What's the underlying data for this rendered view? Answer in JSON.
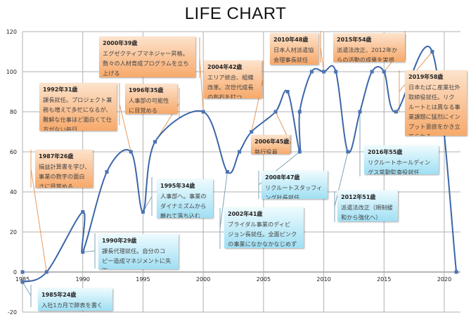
{
  "chart_data": {
    "type": "line",
    "title": "LIFE CHART",
    "xlabel": "",
    "ylabel": "",
    "xlim": [
      1985,
      2021
    ],
    "ylim": [
      -20,
      120
    ],
    "x_ticks": [
      1985,
      1990,
      1995,
      2000,
      2005,
      2010,
      2015,
      2020
    ],
    "y_ticks": [
      -20,
      0,
      20,
      40,
      60,
      80,
      100,
      120
    ],
    "grid": true,
    "smooth": true,
    "line_color": "#3b66a8",
    "extra_points": [
      {
        "x": 1985,
        "y": 0
      }
    ],
    "points": [
      {
        "x": 1985,
        "y": -5
      },
      {
        "x": 1987,
        "y": 0
      },
      {
        "x": 1990,
        "y": 30
      },
      {
        "x": 1990,
        "y": 10
      },
      {
        "x": 1992,
        "y": 50
      },
      {
        "x": 1994,
        "y": 60
      },
      {
        "x": 1995,
        "y": 30
      },
      {
        "x": 1996,
        "y": 65
      },
      {
        "x": 2000,
        "y": 80
      },
      {
        "x": 2002,
        "y": 50
      },
      {
        "x": 2003,
        "y": 60
      },
      {
        "x": 2004,
        "y": 70
      },
      {
        "x": 2006,
        "y": 80
      },
      {
        "x": 2007,
        "y": 90
      },
      {
        "x": 2008,
        "y": 60
      },
      {
        "x": 2008,
        "y": 80
      },
      {
        "x": 2009,
        "y": 100
      },
      {
        "x": 2010,
        "y": 100
      },
      {
        "x": 2011,
        "y": 100
      },
      {
        "x": 2012,
        "y": 60
      },
      {
        "x": 2013,
        "y": 80
      },
      {
        "x": 2014,
        "y": 100
      },
      {
        "x": 2015,
        "y": 100
      },
      {
        "x": 2016,
        "y": 80
      },
      {
        "x": 2019,
        "y": 110
      },
      {
        "x": 2021,
        "y": 0
      }
    ],
    "annotations": [
      {
        "title": "1985年24歳",
        "lines": [
          "入社1カ月で辞表を書く"
        ],
        "color": "blue"
      },
      {
        "title": "1987年26歳",
        "lines": [
          "損益計算書を学び、",
          "事業の数字の面白",
          "さに目覚める"
        ],
        "color": "orange"
      },
      {
        "title": "1990年29歳",
        "lines": [
          "課長代理就任。自分のコ",
          "ピー造成マネジメントに失",
          "敗"
        ],
        "color": "blue"
      },
      {
        "title": "1992年31歳",
        "lines": [
          "課長就任。プロジェクト兼",
          "務も増えて多忙になるが、",
          "難解な仕事ほど面白くて仕",
          "方がない毎日"
        ],
        "color": "orange"
      },
      {
        "title": "1995年34歳",
        "lines": [
          "人事部へ。事業の",
          "ダイナミズムから",
          "離れて落ち込む"
        ],
        "color": "blue"
      },
      {
        "title": "1996年35歳",
        "lines": [
          "人事部の可能性",
          "に目覚める"
        ],
        "color": "orange"
      },
      {
        "title": "2000年39歳",
        "lines": [
          "エグゼクティブマネジャー昇格。",
          "数々の人材育成プログラムを立ち",
          "上げる"
        ],
        "color": "orange"
      },
      {
        "title": "2002年41歳",
        "lines": [
          "ブライダル事業のディビ",
          "ジョン長就任。全面ピンク",
          "の事業になかなかなじめず"
        ],
        "color": "blue"
      },
      {
        "title": "2004年42歳",
        "lines": [
          "エリア統合、組織",
          "改革。次世代成長",
          "の布石を打つ"
        ],
        "color": "orange"
      },
      {
        "title": "2006年45歳",
        "lines": [
          "執行役員"
        ],
        "color": "orange"
      },
      {
        "title": "2008年47歳",
        "lines": [
          "リクルートスタッフィ",
          "ング社長就任"
        ],
        "color": "blue"
      },
      {
        "title": "2010年48歳",
        "lines": [
          "日本人材派遣協",
          "会理事長就任"
        ],
        "color": "orange"
      },
      {
        "title": "2012年51歳",
        "lines": [
          "派遣法改正（規制緩",
          "和から強化へ）"
        ],
        "color": "blue"
      },
      {
        "title": "2015年54歳",
        "lines": [
          "派遣法改正、2012年か",
          "らの活動の成果を実感"
        ],
        "color": "orange"
      },
      {
        "title": "2016年55歳",
        "lines": [
          "リクルートホールディン",
          "グス常勤監査役就任"
        ],
        "color": "blue"
      },
      {
        "title": "2019年58歳",
        "lines": [
          "日本たばこ産業社外",
          "取締役就任。リク",
          "ルートとは異なる事",
          "業課題に猛烈にイン",
          "プット意欲をかき立",
          "てられる"
        ],
        "color": "orange"
      }
    ]
  }
}
